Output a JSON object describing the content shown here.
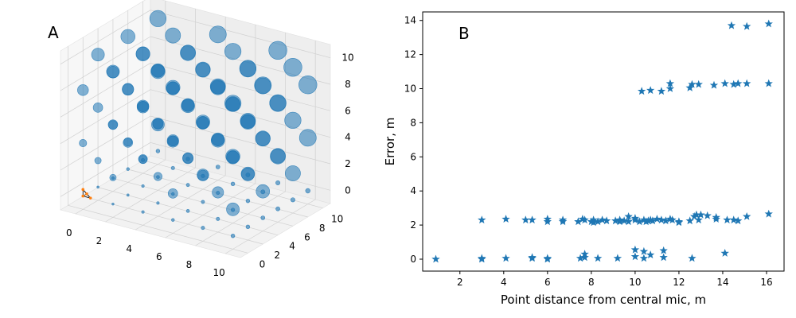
{
  "colors": {
    "marker": "#1f77b4",
    "mic_outline": "#000000",
    "mic_marker": "#ff7f0e"
  },
  "chart_data": [
    {
      "panel_label": "A",
      "type": "scatter3d",
      "xticks": [
        0,
        2,
        4,
        6,
        8,
        10
      ],
      "yticks": [
        0,
        2,
        4,
        6,
        8,
        10
      ],
      "zticks": [
        0,
        2,
        4,
        6,
        8,
        10
      ],
      "xlim": [
        -1,
        11
      ],
      "ylim": [
        -1,
        11
      ],
      "zlim": [
        -1,
        11
      ],
      "grid_values": [
        0,
        2,
        4,
        6,
        8,
        10
      ],
      "size_encodes": "error",
      "mic_array": [
        [
          0,
          0,
          0
        ],
        [
          0.5,
          0,
          0
        ],
        [
          0,
          0.5,
          0
        ],
        [
          0,
          0,
          0.5
        ]
      ]
    },
    {
      "panel_label": "B",
      "type": "scatter",
      "marker": "star",
      "xlabel": "Point distance from central mic, m",
      "ylabel": "Error, m",
      "xticks": [
        2,
        4,
        6,
        8,
        10,
        12,
        14,
        16
      ],
      "yticks": [
        0,
        2,
        4,
        6,
        8,
        10,
        12,
        14
      ],
      "xlim": [
        0.3,
        16.8
      ],
      "ylim": [
        -0.7,
        14.5
      ],
      "points": [
        [
          0.9,
          0.0
        ],
        [
          3.0,
          2.3
        ],
        [
          3.0,
          0.0
        ],
        [
          3.0,
          0.05
        ],
        [
          4.1,
          2.35
        ],
        [
          4.1,
          0.05
        ],
        [
          5.0,
          2.3
        ],
        [
          5.3,
          2.3
        ],
        [
          5.3,
          0.05
        ],
        [
          5.3,
          0.1
        ],
        [
          6.0,
          2.35
        ],
        [
          6.0,
          2.2
        ],
        [
          6.0,
          0.0
        ],
        [
          6.0,
          0.05
        ],
        [
          6.7,
          2.2
        ],
        [
          6.7,
          2.3
        ],
        [
          7.4,
          2.2
        ],
        [
          7.5,
          0.05
        ],
        [
          7.6,
          2.35
        ],
        [
          7.7,
          0.3
        ],
        [
          7.7,
          0.1
        ],
        [
          7.7,
          2.3
        ],
        [
          8.0,
          2.2
        ],
        [
          8.1,
          2.3
        ],
        [
          8.1,
          2.15
        ],
        [
          8.3,
          0.05
        ],
        [
          8.3,
          2.2
        ],
        [
          8.5,
          2.3
        ],
        [
          8.7,
          2.25
        ],
        [
          9.1,
          2.25
        ],
        [
          9.2,
          0.05
        ],
        [
          9.3,
          2.2
        ],
        [
          9.3,
          2.3
        ],
        [
          9.5,
          2.25
        ],
        [
          9.7,
          2.5
        ],
        [
          9.7,
          2.2
        ],
        [
          10.0,
          2.3
        ],
        [
          10.0,
          0.55
        ],
        [
          10.0,
          0.15
        ],
        [
          10.0,
          2.4
        ],
        [
          10.2,
          2.2
        ],
        [
          10.3,
          9.85
        ],
        [
          10.4,
          0.45
        ],
        [
          10.4,
          0.05
        ],
        [
          10.4,
          2.3
        ],
        [
          10.5,
          2.2
        ],
        [
          10.6,
          2.25
        ],
        [
          10.7,
          9.9
        ],
        [
          10.7,
          2.3
        ],
        [
          10.7,
          0.25
        ],
        [
          10.8,
          2.25
        ],
        [
          11.0,
          2.35
        ],
        [
          11.2,
          2.3
        ],
        [
          11.2,
          9.85
        ],
        [
          11.3,
          0.5
        ],
        [
          11.3,
          0.1
        ],
        [
          11.4,
          2.25
        ],
        [
          11.6,
          2.35
        ],
        [
          11.6,
          10.3
        ],
        [
          11.6,
          10.0
        ],
        [
          11.7,
          2.3
        ],
        [
          12.0,
          2.2
        ],
        [
          12.0,
          2.15
        ],
        [
          12.5,
          10.05
        ],
        [
          12.5,
          2.25
        ],
        [
          12.6,
          10.25
        ],
        [
          12.6,
          0.05
        ],
        [
          12.7,
          2.5
        ],
        [
          12.8,
          2.6
        ],
        [
          12.9,
          10.25
        ],
        [
          12.9,
          2.3
        ],
        [
          13.0,
          2.6
        ],
        [
          13.3,
          2.55
        ],
        [
          13.6,
          10.2
        ],
        [
          13.7,
          2.45
        ],
        [
          13.7,
          2.35
        ],
        [
          14.1,
          0.35
        ],
        [
          14.1,
          10.3
        ],
        [
          14.2,
          2.3
        ],
        [
          14.4,
          13.7
        ],
        [
          14.5,
          10.25
        ],
        [
          14.5,
          2.3
        ],
        [
          14.7,
          2.25
        ],
        [
          14.7,
          10.3
        ],
        [
          15.1,
          13.65
        ],
        [
          15.1,
          10.3
        ],
        [
          15.1,
          2.5
        ],
        [
          16.1,
          13.8
        ],
        [
          16.1,
          10.3
        ],
        [
          16.1,
          2.65
        ]
      ]
    }
  ]
}
